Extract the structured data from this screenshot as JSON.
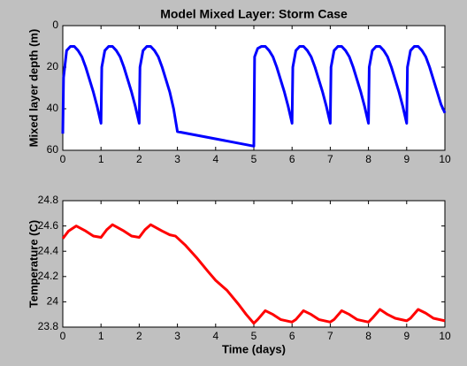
{
  "chart_data": [
    {
      "type": "line",
      "title": "Model Mixed Layer: Storm Case",
      "ylabel": "Mixed layer depth (m)",
      "xlim": [
        0,
        10
      ],
      "xticks": [
        0,
        1,
        2,
        3,
        4,
        5,
        6,
        7,
        8,
        9,
        10
      ],
      "ylim": [
        0,
        60
      ],
      "yticks": [
        0,
        20,
        40,
        60
      ],
      "yreverse": true,
      "series": [
        {
          "color": "#0000ff",
          "x": [
            0,
            0.02,
            0.1,
            0.2,
            0.3,
            0.4,
            0.5,
            0.6,
            0.7,
            0.8,
            0.9,
            1.0,
            1.02,
            1.1,
            1.2,
            1.3,
            1.4,
            1.5,
            1.6,
            1.7,
            1.8,
            1.9,
            2.0,
            2.02,
            2.1,
            2.2,
            2.3,
            2.4,
            2.5,
            2.6,
            2.7,
            2.8,
            2.9,
            3.0,
            5.0,
            5.02,
            5.1,
            5.2,
            5.3,
            5.4,
            5.5,
            5.6,
            5.7,
            5.8,
            5.9,
            6.0,
            6.02,
            6.1,
            6.2,
            6.3,
            6.4,
            6.5,
            6.6,
            6.7,
            6.8,
            6.9,
            7.0,
            7.02,
            7.1,
            7.2,
            7.3,
            7.4,
            7.5,
            7.6,
            7.7,
            7.8,
            7.9,
            8.0,
            8.02,
            8.1,
            8.2,
            8.3,
            8.4,
            8.5,
            8.6,
            8.7,
            8.8,
            8.9,
            9.0,
            9.02,
            9.1,
            9.2,
            9.3,
            9.4,
            9.5,
            9.6,
            9.7,
            9.8,
            9.9,
            10.0
          ],
          "values": [
            52,
            25,
            12,
            10,
            10,
            12,
            15,
            20,
            26,
            32,
            39,
            47,
            20,
            12,
            10,
            10,
            12,
            15,
            20,
            26,
            32,
            39,
            47,
            20,
            12,
            10,
            10,
            12,
            15,
            20,
            26,
            32,
            40,
            51,
            58,
            15,
            11,
            10,
            10,
            12,
            15,
            20,
            26,
            32,
            39,
            47,
            20,
            12,
            10,
            10,
            12,
            15,
            20,
            26,
            32,
            39,
            47,
            20,
            12,
            10,
            10,
            12,
            15,
            20,
            26,
            32,
            39,
            47,
            20,
            12,
            10,
            10,
            12,
            15,
            20,
            26,
            32,
            39,
            47,
            20,
            12,
            10,
            10,
            12,
            15,
            20,
            26,
            32,
            38,
            42
          ]
        }
      ]
    },
    {
      "type": "line",
      "xlabel": "Time (days)",
      "ylabel": "Temperature (C)",
      "xlim": [
        0,
        10
      ],
      "xticks": [
        0,
        1,
        2,
        3,
        4,
        5,
        6,
        7,
        8,
        9,
        10
      ],
      "ylim": [
        23.8,
        24.8
      ],
      "yticks": [
        23.8,
        24,
        24.2,
        24.4,
        24.6,
        24.8
      ],
      "yreverse": false,
      "series": [
        {
          "color": "#ff0000",
          "x": [
            0,
            0.15,
            0.35,
            0.6,
            0.8,
            1.0,
            1.15,
            1.3,
            1.6,
            1.8,
            2.0,
            2.15,
            2.3,
            2.6,
            2.8,
            2.95,
            3.2,
            3.5,
            3.8,
            4.0,
            4.3,
            4.6,
            4.8,
            5.0,
            5.1,
            5.3,
            5.5,
            5.7,
            6.0,
            6.1,
            6.3,
            6.5,
            6.7,
            7.0,
            7.1,
            7.3,
            7.5,
            7.7,
            8.0,
            8.1,
            8.3,
            8.5,
            8.7,
            9.0,
            9.1,
            9.3,
            9.5,
            9.7,
            10
          ],
          "values": [
            24.5,
            24.56,
            24.6,
            24.56,
            24.52,
            24.51,
            24.57,
            24.61,
            24.56,
            24.52,
            24.51,
            24.57,
            24.61,
            24.56,
            24.53,
            24.52,
            24.45,
            24.35,
            24.24,
            24.17,
            24.09,
            23.98,
            23.9,
            23.83,
            23.86,
            23.93,
            23.9,
            23.86,
            23.84,
            23.86,
            23.93,
            23.9,
            23.86,
            23.84,
            23.86,
            23.93,
            23.9,
            23.86,
            23.84,
            23.87,
            23.94,
            23.9,
            23.87,
            23.85,
            23.87,
            23.94,
            23.91,
            23.87,
            23.85
          ]
        }
      ]
    }
  ]
}
